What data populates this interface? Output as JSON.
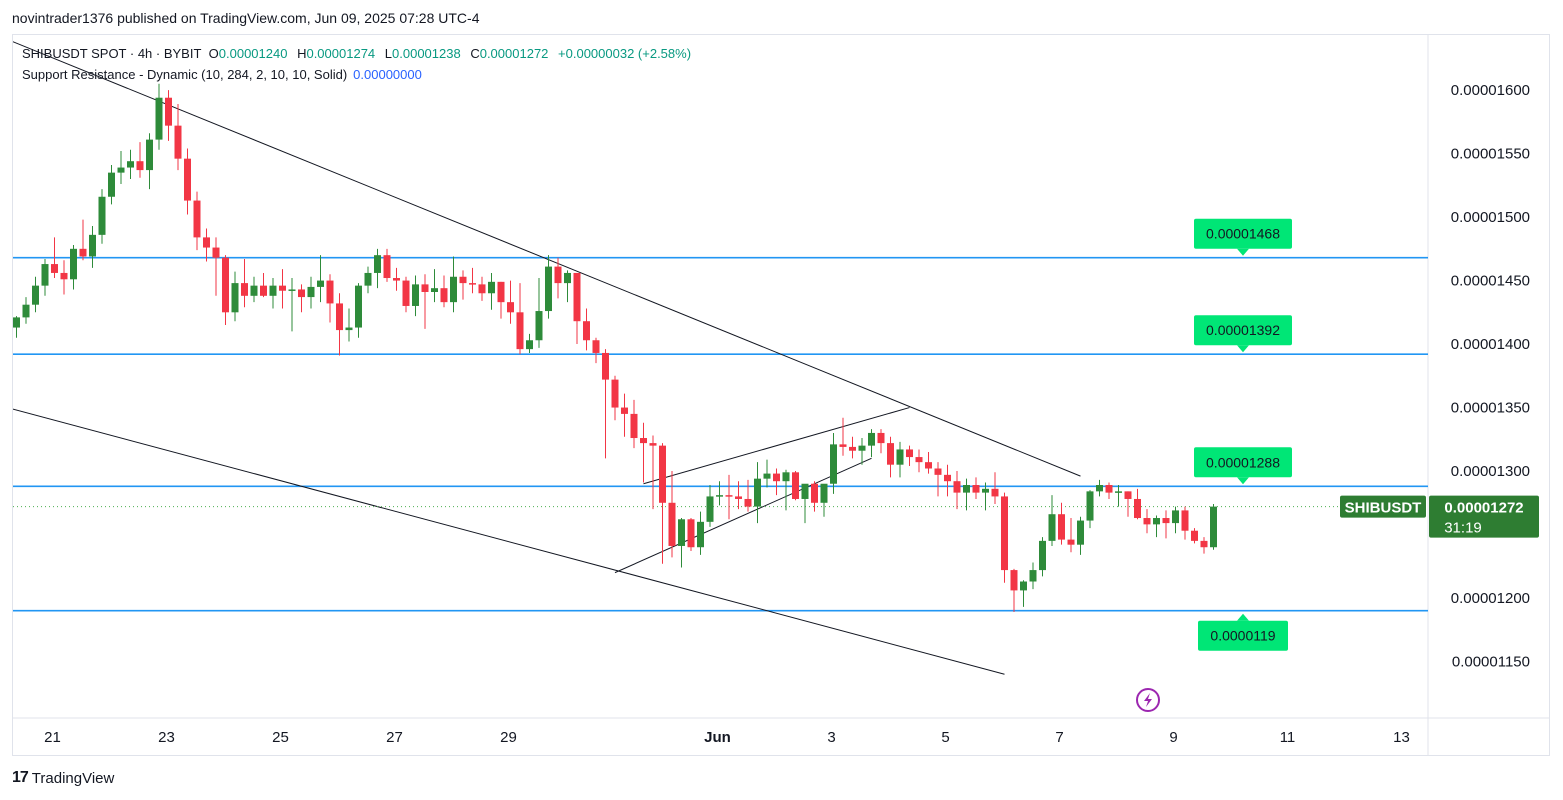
{
  "header": {
    "published": "novintrader1376 published on TradingView.com, Jun 09, 2025 07:28 UTC-4"
  },
  "legend": {
    "symbol": "SHIBUSDT SPOT · 4h · BYBIT",
    "open_key": "O",
    "open": "0.00001240",
    "high_key": "H",
    "high": "0.00001274",
    "low_key": "L",
    "low": "0.00001238",
    "close_key": "C",
    "close": "0.00001272",
    "change": "+0.00000032 (+2.58%)",
    "indicator_name": "Support Resistance - Dynamic (10, 284, 2, 10, 10, Solid)",
    "indicator_value": "0.00000000"
  },
  "footer": {
    "brand": "TradingView",
    "brand_mark": "17"
  },
  "colors": {
    "up": "#2e8b3a",
    "down": "#f23645",
    "level_line": "#2196f3",
    "level_label_bg": "#00e676",
    "trend_line": "#131722",
    "last_price_bg": "#2e7d32",
    "current_price_line": "#4caf50",
    "lightning_icon": "#9c27b0"
  },
  "chart_data": {
    "type": "candlestick",
    "symbol_badge": "SHIBUSDT",
    "last_price": "0.00001272",
    "countdown": "31:19",
    "y_axis": {
      "ticks": [
        "0.00001150",
        "0.00001200",
        "0.00001300",
        "0.00001350",
        "0.00001400",
        "0.00001450",
        "0.00001500",
        "0.00001550",
        "0.00001600"
      ],
      "ylim": [
        1.1e-05,
        1.63e-05
      ]
    },
    "x_axis": {
      "ticks": [
        {
          "label": "21",
          "idx": 0
        },
        {
          "label": "23",
          "idx": 12
        },
        {
          "label": "25",
          "idx": 24
        },
        {
          "label": "27",
          "idx": 36
        },
        {
          "label": "29",
          "idx": 48
        },
        {
          "label": "Jun",
          "idx": 70
        },
        {
          "label": "3",
          "idx": 82
        },
        {
          "label": "5",
          "idx": 94
        },
        {
          "label": "7",
          "idx": 106
        },
        {
          "label": "9",
          "idx": 118
        },
        {
          "label": "11",
          "idx": 130
        },
        {
          "label": "13",
          "idx": 142
        }
      ]
    },
    "levels": [
      {
        "price": 1.468e-05,
        "label": "0.00001468"
      },
      {
        "price": 1.392e-05,
        "label": "0.00001392"
      },
      {
        "price": 1.288e-05,
        "label": "0.00001288"
      },
      {
        "price": 1.19e-05,
        "label": "0.0000119"
      }
    ],
    "trend_lines": [
      {
        "from": [
          -1,
          1.64e-05
        ],
        "to": [
          112,
          1.296e-05
        ]
      },
      {
        "from": [
          -1,
          1.35e-05
        ],
        "to": [
          104,
          1.14e-05
        ]
      },
      {
        "from": [
          63,
          1.22e-05
        ],
        "to": [
          90,
          1.31e-05
        ]
      },
      {
        "from": [
          66,
          1.29e-05
        ],
        "to": [
          94,
          1.35e-05
        ]
      }
    ],
    "candles_ohlc": [
      [
        1413,
        1422,
        1405,
        1421
      ],
      [
        1421,
        1437,
        1416,
        1431
      ],
      [
        1431,
        1453,
        1425,
        1446
      ],
      [
        1446,
        1467,
        1438,
        1463
      ],
      [
        1463,
        1484,
        1452,
        1456
      ],
      [
        1456,
        1466,
        1439,
        1451
      ],
      [
        1451,
        1478,
        1443,
        1475
      ],
      [
        1475,
        1498,
        1466,
        1469
      ],
      [
        1469,
        1493,
        1460,
        1486
      ],
      [
        1486,
        1522,
        1479,
        1516
      ],
      [
        1516,
        1541,
        1510,
        1535
      ],
      [
        1535,
        1552,
        1526,
        1539
      ],
      [
        1539,
        1553,
        1530,
        1544
      ],
      [
        1544,
        1559,
        1531,
        1537
      ],
      [
        1537,
        1566,
        1522,
        1561
      ],
      [
        1561,
        1605,
        1553,
        1594
      ],
      [
        1594,
        1600,
        1560,
        1572
      ],
      [
        1572,
        1589,
        1537,
        1546
      ],
      [
        1546,
        1554,
        1502,
        1513
      ],
      [
        1513,
        1520,
        1474,
        1484
      ],
      [
        1484,
        1491,
        1465,
        1476
      ],
      [
        1476,
        1484,
        1438,
        1468
      ],
      [
        1468,
        1470,
        1415,
        1425
      ],
      [
        1425,
        1457,
        1418,
        1448
      ],
      [
        1448,
        1467,
        1429,
        1438
      ],
      [
        1438,
        1453,
        1433,
        1446
      ],
      [
        1446,
        1456,
        1437,
        1438
      ],
      [
        1438,
        1452,
        1428,
        1446
      ],
      [
        1446,
        1459,
        1428,
        1442
      ],
      [
        1442,
        1452,
        1410,
        1443
      ],
      [
        1443,
        1447,
        1425,
        1437
      ],
      [
        1437,
        1453,
        1428,
        1445
      ],
      [
        1445,
        1470,
        1433,
        1450
      ],
      [
        1450,
        1455,
        1417,
        1432
      ],
      [
        1432,
        1440,
        1391,
        1411
      ],
      [
        1411,
        1428,
        1402,
        1413
      ],
      [
        1413,
        1448,
        1405,
        1446
      ],
      [
        1446,
        1461,
        1440,
        1456
      ],
      [
        1456,
        1475,
        1444,
        1470
      ],
      [
        1470,
        1475,
        1449,
        1452
      ],
      [
        1452,
        1460,
        1442,
        1450
      ],
      [
        1450,
        1453,
        1425,
        1430
      ],
      [
        1430,
        1454,
        1422,
        1447
      ],
      [
        1447,
        1455,
        1412,
        1441
      ],
      [
        1441,
        1459,
        1433,
        1444
      ],
      [
        1444,
        1454,
        1429,
        1433
      ],
      [
        1433,
        1469,
        1425,
        1453
      ],
      [
        1453,
        1458,
        1435,
        1448
      ],
      [
        1448,
        1460,
        1440,
        1447
      ],
      [
        1447,
        1453,
        1434,
        1440
      ],
      [
        1440,
        1456,
        1427,
        1449
      ],
      [
        1449,
        1449,
        1420,
        1433
      ],
      [
        1433,
        1450,
        1416,
        1425
      ],
      [
        1425,
        1448,
        1392,
        1396
      ],
      [
        1396,
        1408,
        1393,
        1403
      ],
      [
        1403,
        1452,
        1397,
        1426
      ],
      [
        1426,
        1470,
        1420,
        1461
      ],
      [
        1461,
        1468,
        1436,
        1448
      ],
      [
        1448,
        1458,
        1433,
        1456
      ],
      [
        1456,
        1456,
        1400,
        1418
      ],
      [
        1418,
        1428,
        1395,
        1403
      ],
      [
        1403,
        1405,
        1385,
        1393
      ],
      [
        1393,
        1396,
        1310,
        1372
      ],
      [
        1372,
        1375,
        1340,
        1350
      ],
      [
        1350,
        1361,
        1327,
        1345
      ],
      [
        1345,
        1356,
        1318,
        1326
      ],
      [
        1326,
        1338,
        1291,
        1322
      ],
      [
        1322,
        1328,
        1270,
        1320
      ],
      [
        1320,
        1322,
        1227,
        1275
      ],
      [
        1275,
        1300,
        1232,
        1241
      ],
      [
        1241,
        1263,
        1224,
        1262
      ],
      [
        1262,
        1263,
        1237,
        1240
      ],
      [
        1240,
        1268,
        1234,
        1260
      ],
      [
        1260,
        1289,
        1256,
        1280
      ],
      [
        1280,
        1292,
        1273,
        1281
      ],
      [
        1281,
        1297,
        1262,
        1280
      ],
      [
        1280,
        1292,
        1270,
        1278
      ],
      [
        1278,
        1293,
        1268,
        1272
      ],
      [
        1272,
        1307,
        1259,
        1294
      ],
      [
        1294,
        1309,
        1287,
        1298
      ],
      [
        1298,
        1302,
        1281,
        1292
      ],
      [
        1292,
        1301,
        1269,
        1299
      ],
      [
        1299,
        1300,
        1277,
        1278
      ],
      [
        1278,
        1288,
        1259,
        1290
      ],
      [
        1290,
        1292,
        1268,
        1275
      ],
      [
        1275,
        1285,
        1264,
        1290
      ],
      [
        1290,
        1330,
        1282,
        1321
      ],
      [
        1321,
        1342,
        1312,
        1319
      ],
      [
        1319,
        1327,
        1310,
        1316
      ],
      [
        1316,
        1326,
        1305,
        1320
      ],
      [
        1320,
        1333,
        1311,
        1330
      ],
      [
        1330,
        1333,
        1314,
        1322
      ],
      [
        1322,
        1327,
        1295,
        1305
      ],
      [
        1305,
        1323,
        1295,
        1317
      ],
      [
        1317,
        1320,
        1304,
        1311
      ],
      [
        1311,
        1317,
        1299,
        1307
      ],
      [
        1307,
        1315,
        1298,
        1302
      ],
      [
        1302,
        1307,
        1280,
        1297
      ],
      [
        1297,
        1305,
        1280,
        1292
      ],
      [
        1292,
        1300,
        1270,
        1283
      ],
      [
        1283,
        1294,
        1269,
        1289
      ],
      [
        1289,
        1295,
        1278,
        1283
      ],
      [
        1283,
        1291,
        1269,
        1286
      ],
      [
        1286,
        1299,
        1274,
        1280
      ],
      [
        1280,
        1283,
        1212,
        1222
      ],
      [
        1222,
        1223,
        1189,
        1206
      ],
      [
        1206,
        1214,
        1193,
        1213
      ],
      [
        1213,
        1228,
        1207,
        1222
      ],
      [
        1222,
        1248,
        1217,
        1245
      ],
      [
        1245,
        1281,
        1241,
        1266
      ],
      [
        1266,
        1275,
        1242,
        1246
      ],
      [
        1246,
        1263,
        1236,
        1242
      ],
      [
        1242,
        1264,
        1234,
        1261
      ],
      [
        1261,
        1285,
        1255,
        1284
      ],
      [
        1284,
        1293,
        1280,
        1289
      ],
      [
        1289,
        1291,
        1278,
        1283
      ],
      [
        1283,
        1289,
        1272,
        1284
      ],
      [
        1284,
        1284,
        1264,
        1278
      ],
      [
        1278,
        1286,
        1262,
        1263
      ],
      [
        1263,
        1270,
        1251,
        1258
      ],
      [
        1258,
        1265,
        1248,
        1263
      ],
      [
        1263,
        1269,
        1247,
        1259
      ],
      [
        1259,
        1272,
        1251,
        1269
      ],
      [
        1269,
        1272,
        1246,
        1253
      ],
      [
        1253,
        1255,
        1243,
        1245
      ],
      [
        1245,
        1248,
        1235,
        1240
      ],
      [
        1240,
        1274,
        1238,
        1272
      ]
    ]
  }
}
